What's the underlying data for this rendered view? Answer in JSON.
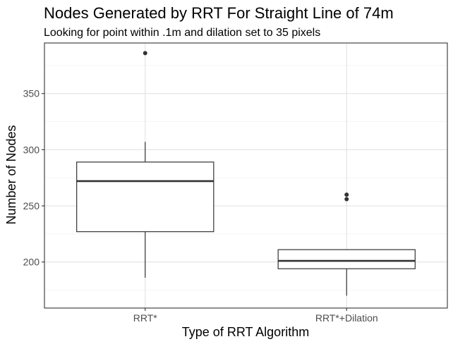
{
  "chart_data": {
    "type": "box",
    "title": "Nodes Generated by RRT For Straight Line of 74m",
    "subtitle": "Looking for point within .1m and dilation set to 35 pixels",
    "xlabel": "Type of RRT Algorithm",
    "ylabel": "Number of Nodes",
    "ylim": [
      159,
      395
    ],
    "yticks": [
      200,
      250,
      300,
      350
    ],
    "yticks_labels": [
      "200",
      "250",
      "300",
      "350"
    ],
    "grid": true,
    "categories": [
      "RRT*",
      "RRT*+Dilation"
    ],
    "boxes": [
      {
        "category": "RRT*",
        "whisker_low": 186,
        "q1": 227,
        "median": 272,
        "q3": 289,
        "whisker_high": 307,
        "outliers": [
          386
        ]
      },
      {
        "category": "RRT*+Dilation",
        "whisker_low": 170,
        "q1": 194,
        "median": 201,
        "q3": 211,
        "whisker_high": 211,
        "outliers": [
          256,
          260
        ]
      }
    ]
  }
}
